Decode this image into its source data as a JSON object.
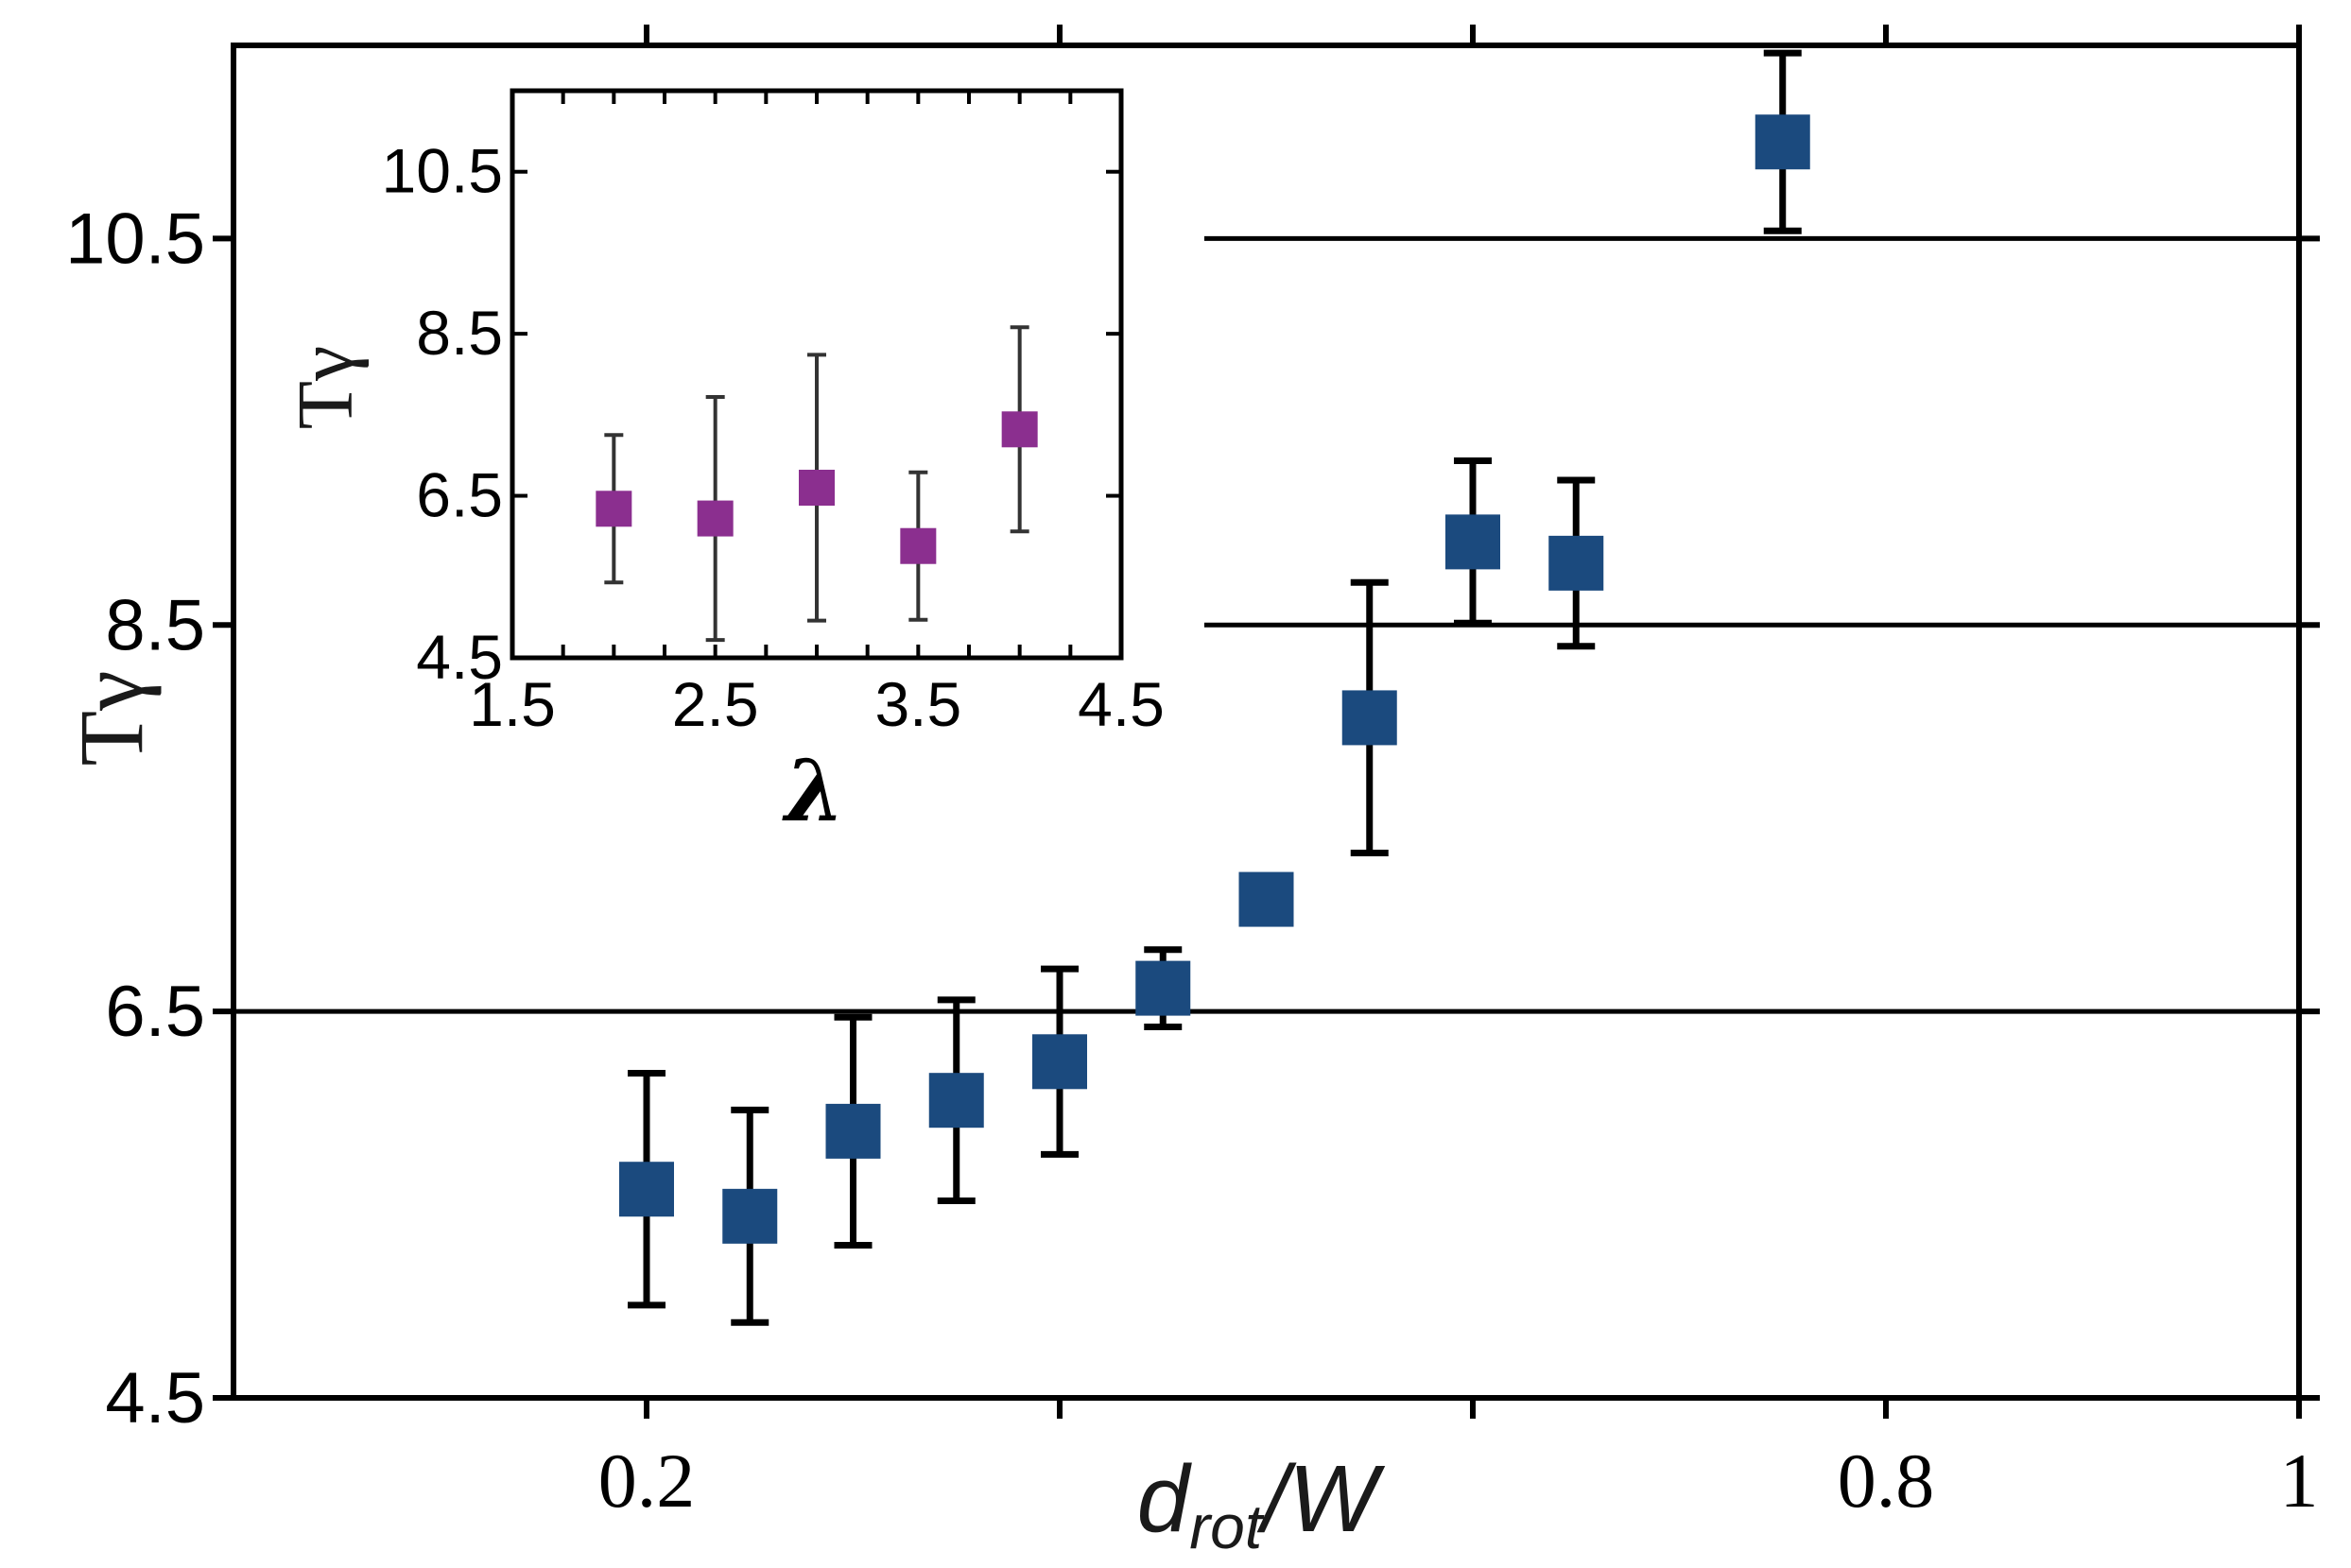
{
  "chart_data": [
    {
      "type": "scatter",
      "title": "",
      "xlabel_main": "d",
      "xlabel_sub": "rot",
      "xlabel_tail": "/W",
      "ylabel": "Tγ",
      "xlim": [
        0.0,
        1.0
      ],
      "ylim": [
        4.5,
        11.5
      ],
      "xticks": [
        0.2,
        0.4,
        0.6,
        0.8,
        1.0
      ],
      "xtick_labels": [
        "0.2",
        "",
        "",
        "0.8",
        "1"
      ],
      "yticks": [
        4.5,
        6.5,
        8.5,
        10.5
      ],
      "ytick_labels": [
        "4.5",
        "6.5",
        "8.5",
        "10.5"
      ],
      "reference_lines": [
        6.5,
        8.5,
        10.5
      ],
      "grid": false,
      "marker": "square",
      "color": "#1b4a7e",
      "series": [
        {
          "name": "main",
          "x": [
            0.2,
            0.25,
            0.3,
            0.35,
            0.4,
            0.45,
            0.5,
            0.55,
            0.6,
            0.65,
            0.75
          ],
          "y": [
            5.58,
            5.44,
            5.88,
            6.04,
            6.24,
            6.62,
            7.08,
            8.02,
            8.93,
            8.82,
            11.0
          ],
          "yerr": [
            0.6,
            0.55,
            0.59,
            0.52,
            0.48,
            0.2,
            0.0,
            0.7,
            0.42,
            0.43,
            0.46
          ]
        }
      ]
    },
    {
      "type": "scatter",
      "role": "inset",
      "xlabel": "λ",
      "ylabel": "Tγ",
      "xlim": [
        1.5,
        4.5
      ],
      "ylim": [
        4.5,
        11.5
      ],
      "xticks": [
        1.5,
        2.5,
        3.5,
        4.5
      ],
      "xtick_labels": [
        "1.5",
        "2.5",
        "3.5",
        "4.5"
      ],
      "yticks": [
        4.5,
        6.5,
        8.5,
        10.5
      ],
      "ytick_labels": [
        "4.5",
        "6.5",
        "8.5",
        "10.5"
      ],
      "grid": false,
      "marker": "square",
      "color": "#8b2f8f",
      "series": [
        {
          "name": "inset",
          "x": [
            2.0,
            2.5,
            3.0,
            3.5,
            4.0
          ],
          "y": [
            6.34,
            6.22,
            6.6,
            5.88,
            7.32
          ],
          "yerr": [
            0.91,
            1.5,
            1.64,
            0.91,
            1.26
          ]
        }
      ]
    }
  ]
}
